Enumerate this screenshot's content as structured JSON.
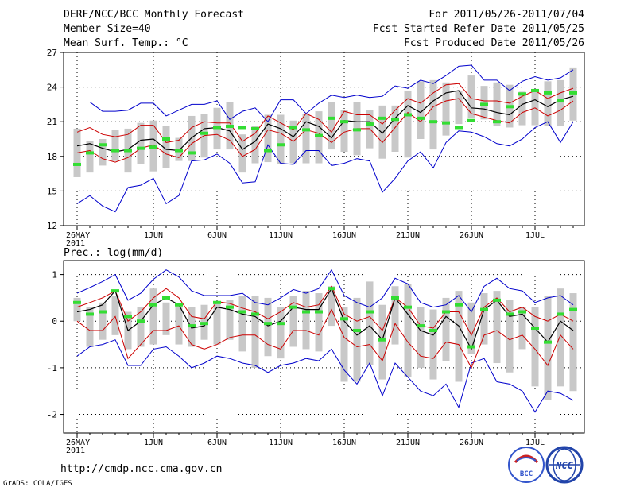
{
  "header": {
    "title": "DERF/NCC/BCC Monthly Forecast",
    "member_size": "Member Size=40",
    "variable": "Mean Surf. Temp.: °C",
    "period": "For 2011/05/26-2011/07/04",
    "start_date": "Fcst Started Refer Date 2011/05/25",
    "produced_date": "Fcst Produced Date 2011/05/26"
  },
  "footer": {
    "url": "http://cmdp.ncc.cma.gov.cn",
    "grads": "GrADS: COLA/IGES",
    "logo_bcc_text": "BCC",
    "logo_ncc_text": "NCC"
  },
  "colors": {
    "envelope": "#0000cc",
    "spread": "#cc0000",
    "mean": "#000000",
    "median": "#33dd33",
    "box": "#c8c8c8",
    "grid": "#000000"
  },
  "chart_data": [
    {
      "type": "line",
      "title": "Mean Surf. Temp.: °C",
      "x_tick_labels": [
        "26MAY",
        "1JUN",
        "6JUN",
        "11JUN",
        "16JUN",
        "21JUN",
        "26JUN",
        "1JUL"
      ],
      "x_tick_days": [
        0,
        6,
        11,
        16,
        21,
        26,
        31,
        36
      ],
      "x_year_label": "2011",
      "ylim": [
        12,
        27
      ],
      "yticks": [
        12,
        15,
        18,
        21,
        24,
        27
      ],
      "days": [
        0,
        1,
        2,
        3,
        4,
        5,
        6,
        7,
        8,
        9,
        10,
        11,
        12,
        13,
        14,
        15,
        16,
        17,
        18,
        19,
        20,
        21,
        22,
        23,
        24,
        25,
        26,
        27,
        28,
        29,
        30,
        31,
        32,
        33,
        34,
        35,
        36,
        37,
        38,
        39
      ],
      "series": [
        {
          "name": "ensemble max",
          "values": [
            22.7,
            22.7,
            21.9,
            21.9,
            22.0,
            22.6,
            22.6,
            21.5,
            22.0,
            22.5,
            22.5,
            22.8,
            21.2,
            21.9,
            22.2,
            21.0,
            22.9,
            22.9,
            21.7,
            22.6,
            23.3,
            23.1,
            23.3,
            23.1,
            23.2,
            24.1,
            23.9,
            24.6,
            24.3,
            25.0,
            25.8,
            25.9,
            24.6,
            24.6,
            23.7,
            24.5,
            24.9,
            24.6,
            24.8,
            25.5
          ]
        },
        {
          "name": "mean + spread",
          "values": [
            20.1,
            20.5,
            19.9,
            19.7,
            19.9,
            20.7,
            20.7,
            19.2,
            19.4,
            20.5,
            21.0,
            20.9,
            20.9,
            19.3,
            20.0,
            21.5,
            20.9,
            20.3,
            21.7,
            21.2,
            20.1,
            21.9,
            21.6,
            21.6,
            20.8,
            22.0,
            23.0,
            22.6,
            23.5,
            24.2,
            24.3,
            23.0,
            22.8,
            22.8,
            22.6,
            23.2,
            23.7,
            23.0,
            23.5,
            23.9
          ]
        },
        {
          "name": "ensemble mean",
          "values": [
            18.9,
            19.1,
            18.7,
            18.4,
            18.6,
            19.4,
            19.5,
            18.6,
            18.5,
            19.6,
            20.4,
            20.5,
            20.2,
            18.6,
            19.3,
            20.8,
            20.4,
            19.7,
            21.0,
            20.6,
            19.6,
            21.1,
            21.0,
            21.0,
            20.0,
            21.3,
            22.4,
            21.8,
            22.8,
            23.5,
            23.7,
            22.2,
            22.1,
            21.8,
            21.6,
            22.5,
            22.9,
            22.3,
            22.9,
            23.2
          ]
        },
        {
          "name": "mean - spread",
          "values": [
            18.3,
            18.5,
            17.8,
            17.5,
            17.9,
            18.7,
            19.0,
            18.2,
            17.9,
            19.1,
            19.8,
            19.9,
            19.4,
            18.0,
            18.6,
            20.3,
            20.0,
            19.3,
            20.3,
            20.0,
            19.2,
            20.1,
            20.4,
            20.4,
            19.2,
            20.5,
            21.8,
            21.0,
            22.3,
            22.8,
            23.0,
            21.7,
            21.4,
            21.1,
            20.9,
            21.8,
            22.2,
            21.5,
            22.0,
            22.8
          ]
        },
        {
          "name": "ensemble min",
          "values": [
            13.9,
            14.6,
            13.7,
            13.2,
            15.3,
            15.5,
            16.1,
            13.9,
            14.6,
            17.6,
            17.7,
            18.2,
            17.4,
            15.7,
            15.8,
            19.0,
            17.4,
            17.3,
            18.5,
            18.5,
            17.2,
            17.4,
            17.8,
            17.6,
            14.9,
            16.1,
            17.6,
            18.4,
            17.0,
            19.2,
            20.2,
            20.1,
            19.7,
            19.1,
            18.9,
            19.5,
            20.5,
            21.0,
            19.2,
            21.0
          ]
        },
        {
          "name": "median",
          "values": [
            17.3,
            18.3,
            19.0,
            18.5,
            18.5,
            18.7,
            18.8,
            19.5,
            18.5,
            18.3,
            20.0,
            20.5,
            20.6,
            20.5,
            20.4,
            18.5,
            19.0,
            20.5,
            20.3,
            19.8,
            21.3,
            21.0,
            20.3,
            20.8,
            21.3,
            21.2,
            21.6,
            21.3,
            21.0,
            20.9,
            20.5,
            21.1,
            22.5,
            21.0,
            22.3,
            23.4,
            23.7,
            23.5,
            22.8,
            23.5
          ]
        },
        {
          "name": "box high",
          "values": [
            20.4,
            19.3,
            19.5,
            20.3,
            20.4,
            20.9,
            21.1,
            20.6,
            19.6,
            21.5,
            21.7,
            22.2,
            22.7,
            19.9,
            20.6,
            21.6,
            21.6,
            21.1,
            21.7,
            21.9,
            22.7,
            22.0,
            22.7,
            22.0,
            22.4,
            22.4,
            23.7,
            24.5,
            24.6,
            24.4,
            23.7,
            25.0,
            24.1,
            24.4,
            24.2,
            23.6,
            23.7,
            24.5,
            24.6,
            25.7
          ]
        },
        {
          "name": "box low",
          "values": [
            16.2,
            16.6,
            17.2,
            17.6,
            16.6,
            17.3,
            16.7,
            17.0,
            17.6,
            17.6,
            17.9,
            18.6,
            18.6,
            16.6,
            17.4,
            17.5,
            17.3,
            17.4,
            17.4,
            17.4,
            18.6,
            18.4,
            18.1,
            18.7,
            17.8,
            18.4,
            17.9,
            19.5,
            18.6,
            19.8,
            20.8,
            21.3,
            21.2,
            20.6,
            20.5,
            20.7,
            20.7,
            20.6,
            20.6,
            21.1
          ]
        }
      ]
    },
    {
      "type": "line",
      "title": "Prec.: log(mm/d)",
      "x_tick_labels": [
        "26MAY",
        "1JUN",
        "6JUN",
        "11JUN",
        "16JUN",
        "21JUN",
        "26JUN",
        "1JUL"
      ],
      "x_tick_days": [
        0,
        6,
        11,
        16,
        21,
        26,
        31,
        36
      ],
      "x_year_label": "2011",
      "ylim": [
        -2.4,
        1.3
      ],
      "yticks": [
        -2,
        -1,
        0,
        1
      ],
      "days": [
        0,
        1,
        2,
        3,
        4,
        5,
        6,
        7,
        8,
        9,
        10,
        11,
        12,
        13,
        14,
        15,
        16,
        17,
        18,
        19,
        20,
        21,
        22,
        23,
        24,
        25,
        26,
        27,
        28,
        29,
        30,
        31,
        32,
        33,
        34,
        35,
        36,
        37,
        38,
        39
      ],
      "series": [
        {
          "name": "ensemble max",
          "values": [
            0.6,
            0.72,
            0.85,
            1.0,
            0.45,
            0.6,
            0.9,
            1.1,
            0.95,
            0.65,
            0.55,
            0.55,
            0.55,
            0.6,
            0.4,
            0.35,
            0.5,
            0.68,
            0.6,
            0.7,
            1.1,
            0.55,
            0.4,
            0.3,
            0.5,
            0.92,
            0.8,
            0.4,
            0.3,
            0.35,
            0.55,
            0.2,
            0.75,
            0.92,
            0.7,
            0.65,
            0.4,
            0.5,
            0.55,
            0.35
          ]
        },
        {
          "name": "mean + spread",
          "values": [
            0.3,
            0.4,
            0.5,
            0.65,
            0.0,
            0.2,
            0.5,
            0.7,
            0.5,
            0.1,
            0.05,
            0.42,
            0.38,
            0.28,
            0.2,
            0.05,
            0.2,
            0.4,
            0.3,
            0.35,
            0.75,
            0.15,
            0.0,
            0.1,
            -0.2,
            0.5,
            0.3,
            -0.1,
            -0.15,
            0.2,
            0.2,
            -0.3,
            0.3,
            0.5,
            0.2,
            0.3,
            0.1,
            0.0,
            0.15,
            0.0
          ]
        },
        {
          "name": "ensemble mean",
          "values": [
            0.2,
            0.25,
            0.35,
            0.65,
            -0.2,
            0.0,
            0.35,
            0.5,
            0.35,
            -0.15,
            -0.1,
            0.3,
            0.25,
            0.15,
            0.1,
            -0.1,
            0.0,
            0.3,
            0.25,
            0.25,
            0.7,
            0.0,
            -0.3,
            -0.1,
            -0.4,
            0.5,
            0.15,
            -0.2,
            -0.3,
            0.1,
            -0.1,
            -0.6,
            0.25,
            0.45,
            0.1,
            0.15,
            -0.15,
            -0.45,
            0.0,
            -0.2
          ]
        },
        {
          "name": "mean - spread",
          "values": [
            0.0,
            -0.2,
            -0.2,
            0.1,
            -0.8,
            -0.5,
            -0.2,
            -0.2,
            -0.1,
            -0.5,
            -0.6,
            -0.5,
            -0.35,
            -0.3,
            -0.3,
            -0.5,
            -0.6,
            -0.2,
            -0.2,
            -0.3,
            0.25,
            -0.35,
            -0.55,
            -0.5,
            -0.85,
            -0.05,
            -0.45,
            -0.75,
            -0.8,
            -0.45,
            -0.5,
            -1.0,
            -0.3,
            -0.2,
            -0.4,
            -0.3,
            -0.6,
            -0.95,
            -0.3,
            -0.6
          ]
        },
        {
          "name": "ensemble min",
          "values": [
            -0.75,
            -0.55,
            -0.5,
            -0.4,
            -0.95,
            -0.95,
            -0.6,
            -0.55,
            -0.75,
            -1.0,
            -0.9,
            -0.75,
            -0.8,
            -0.9,
            -0.95,
            -1.1,
            -0.95,
            -0.9,
            -0.8,
            -0.85,
            -0.6,
            -1.05,
            -1.35,
            -0.9,
            -1.6,
            -0.9,
            -1.2,
            -1.5,
            -1.6,
            -1.35,
            -1.85,
            -0.9,
            -0.8,
            -1.3,
            -1.35,
            -1.5,
            -1.95,
            -1.5,
            -1.55,
            -1.7
          ]
        },
        {
          "name": "median",
          "values": [
            0.4,
            0.15,
            0.2,
            0.65,
            0.1,
            0.0,
            0.35,
            0.5,
            0.35,
            -0.1,
            -0.05,
            0.4,
            0.3,
            0.2,
            0.15,
            -0.05,
            -0.05,
            0.3,
            0.2,
            0.2,
            0.7,
            0.05,
            -0.2,
            0.2,
            -0.4,
            0.5,
            0.3,
            -0.1,
            -0.2,
            0.2,
            0.35,
            -0.55,
            0.25,
            0.45,
            0.15,
            0.2,
            -0.15,
            -0.45,
            0.15,
            0.25
          ]
        },
        {
          "name": "box high",
          "values": [
            0.5,
            0.3,
            0.4,
            0.55,
            0.2,
            0.3,
            0.7,
            0.4,
            0.35,
            0.3,
            0.35,
            0.4,
            0.45,
            0.55,
            0.55,
            0.5,
            0.3,
            0.55,
            0.65,
            0.6,
            0.75,
            0.3,
            0.5,
            0.85,
            0.35,
            0.75,
            0.8,
            0.3,
            0.25,
            0.5,
            0.65,
            0.4,
            0.6,
            0.65,
            0.45,
            0.3,
            0.3,
            0.55,
            0.7,
            0.6
          ]
        },
        {
          "name": "box low",
          "values": [
            0.0,
            -0.55,
            -0.4,
            -0.3,
            -0.6,
            -0.55,
            -0.5,
            -0.3,
            -0.5,
            -0.55,
            -0.4,
            -0.5,
            -0.4,
            -0.65,
            -1.0,
            -0.75,
            -0.8,
            -0.55,
            -0.6,
            -0.65,
            -0.1,
            -1.3,
            -1.3,
            -0.95,
            -1.25,
            -0.5,
            -1.2,
            -1.0,
            -1.25,
            -0.85,
            -1.3,
            -0.7,
            -0.5,
            -0.9,
            -1.1,
            -0.6,
            -1.4,
            -1.7,
            -1.4,
            -1.5
          ]
        }
      ]
    }
  ]
}
